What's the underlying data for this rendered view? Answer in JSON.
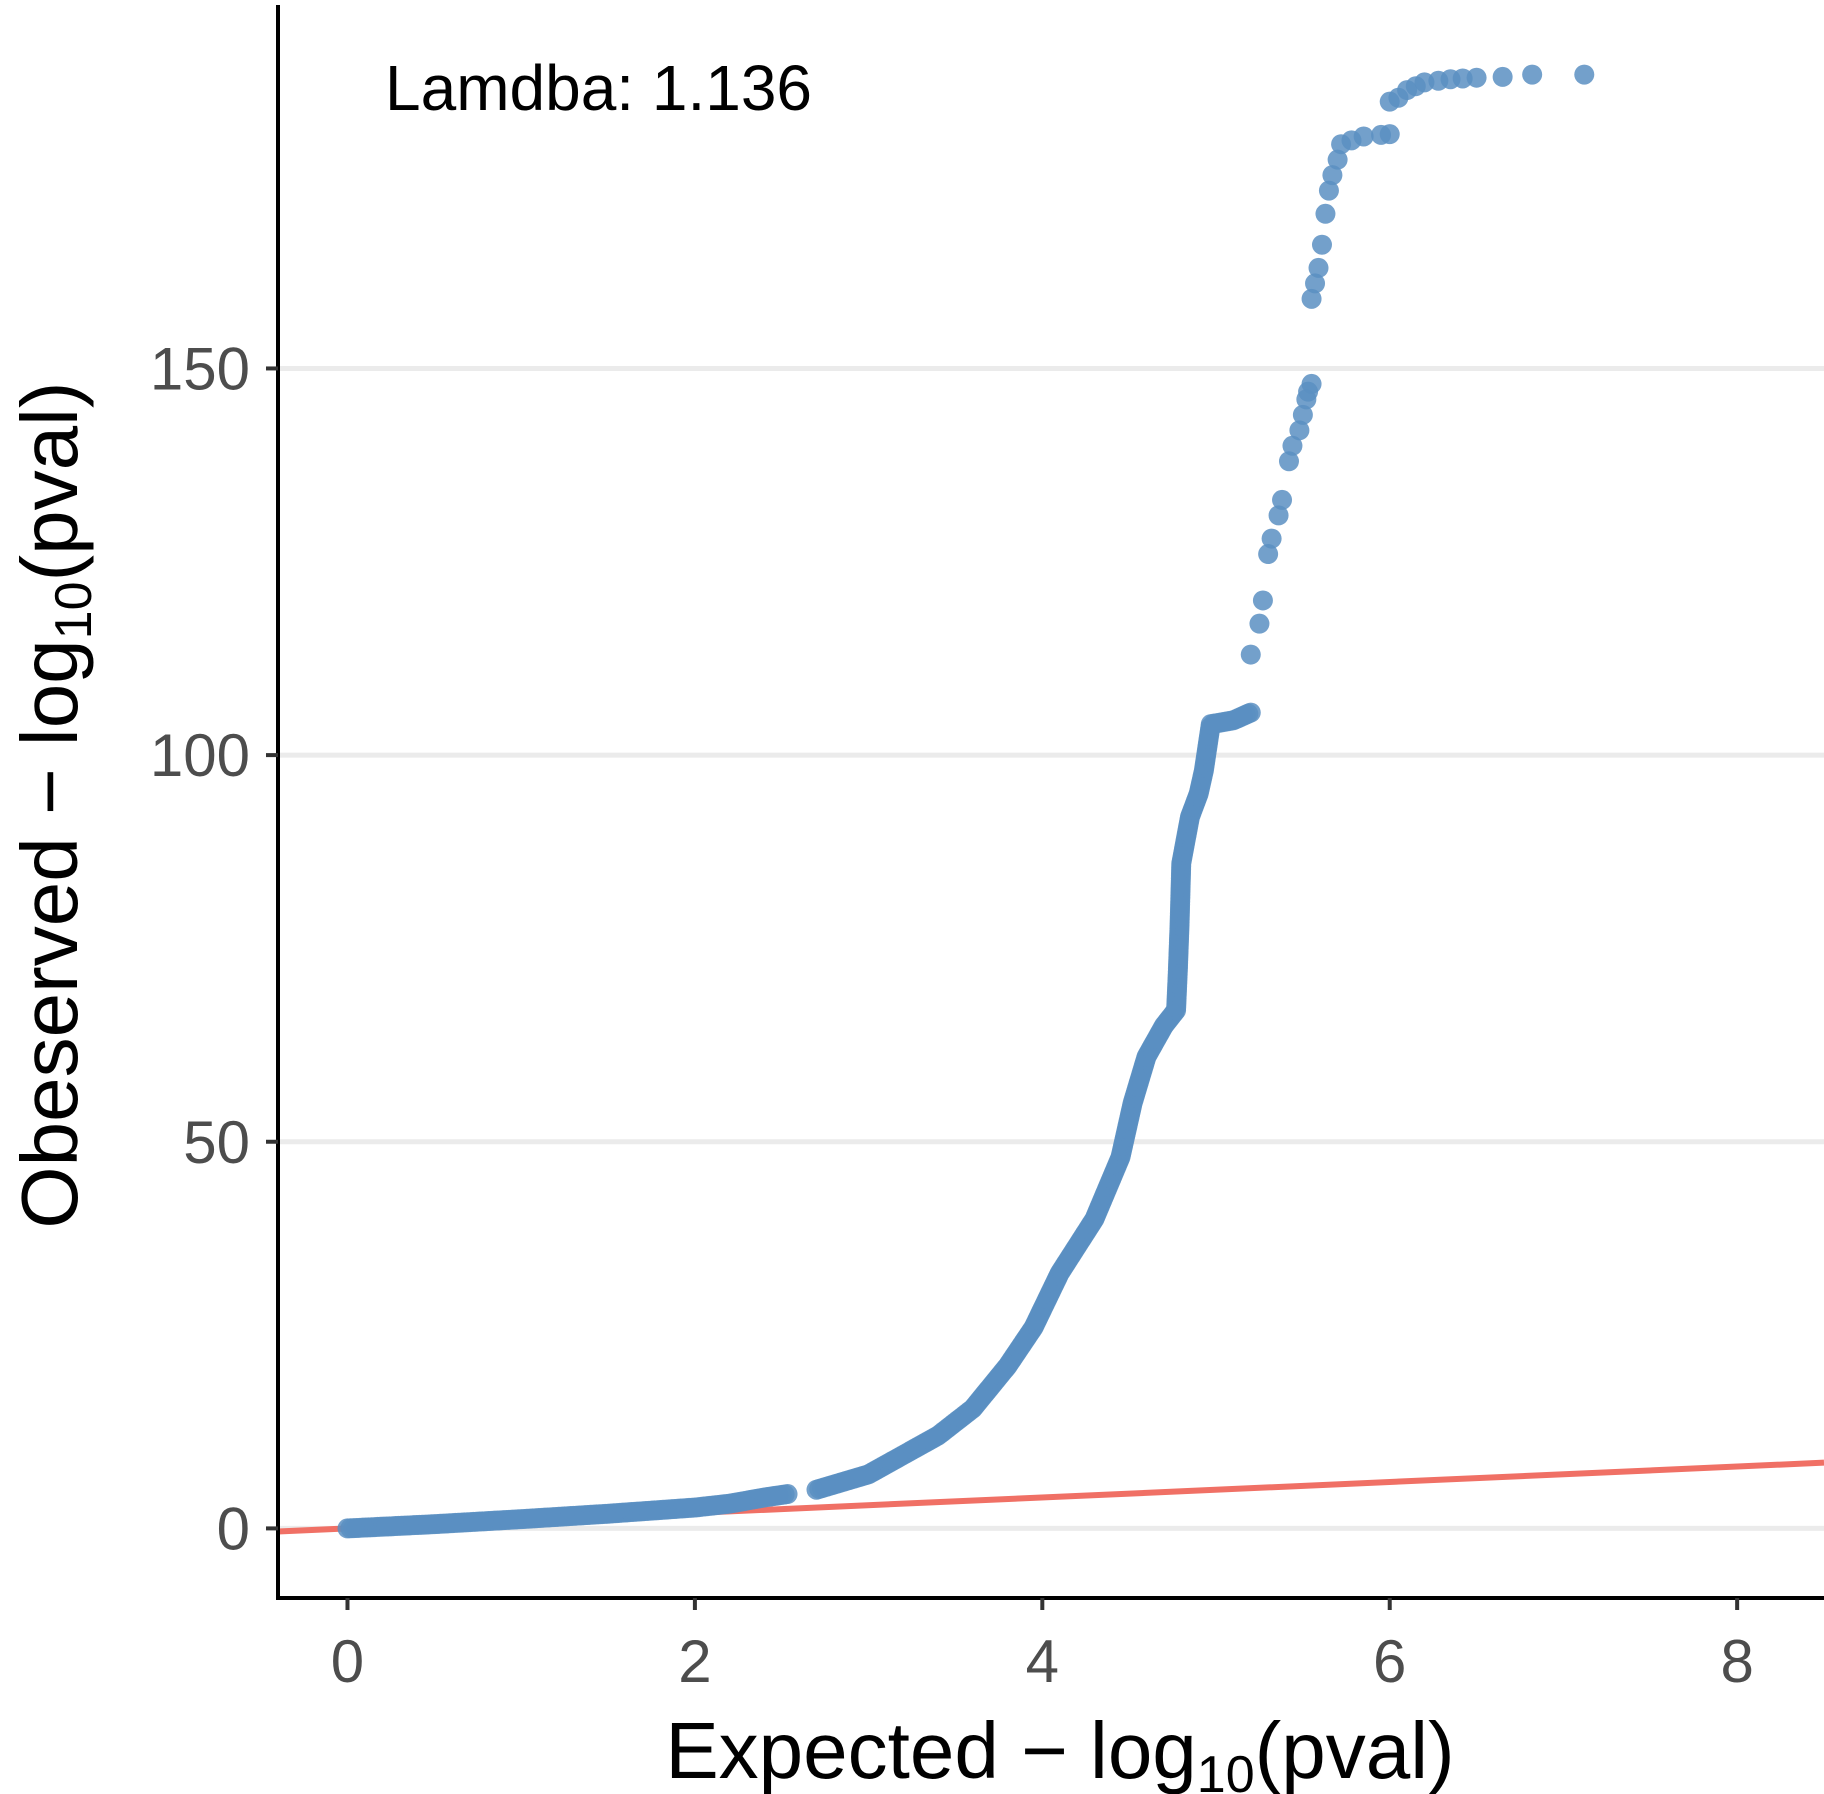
{
  "chart_data": {
    "type": "scatter",
    "annotation": "Lamdba: 1.136",
    "xlabel": {
      "main": "Expected − log",
      "sub": "10",
      "tail": "(pval)"
    },
    "ylabel": {
      "main": "Obeserved − log",
      "sub": "10",
      "tail": "(pval)"
    },
    "xlim": [
      -0.4,
      8.5
    ],
    "ylim": [
      -9,
      197
    ],
    "x_ticks": [
      0,
      2,
      4,
      6,
      8
    ],
    "x_tick_labels": [
      "0",
      "2",
      "4",
      "6",
      "8"
    ],
    "y_ticks": [
      0,
      50,
      100,
      150
    ],
    "y_tick_labels": [
      "0",
      "50",
      "100",
      "150"
    ],
    "grid": "horizontal major",
    "point_color": "#5A8FC2",
    "line_color": "#F07065",
    "reference_line": {
      "slope": 1,
      "intercept": 0
    },
    "curve": [
      [
        0.0,
        0.0
      ],
      [
        0.5,
        0.55
      ],
      [
        1.0,
        1.2
      ],
      [
        1.5,
        1.9
      ],
      [
        2.0,
        2.7
      ],
      [
        2.2,
        3.2
      ],
      [
        2.3,
        3.6
      ],
      [
        2.4,
        4.0
      ],
      [
        2.55,
        4.5
      ],
      [
        2.7,
        5.0
      ],
      [
        3.0,
        7.0
      ],
      [
        3.2,
        9.5
      ],
      [
        3.4,
        12.0
      ],
      [
        3.6,
        15.5
      ],
      [
        3.8,
        21.0
      ],
      [
        3.95,
        26.0
      ],
      [
        4.1,
        33.0
      ],
      [
        4.3,
        40.0
      ],
      [
        4.45,
        48.0
      ],
      [
        4.52,
        55.0
      ],
      [
        4.6,
        61.0
      ],
      [
        4.7,
        65.0
      ],
      [
        4.77,
        67.0
      ],
      [
        4.78,
        72.0
      ],
      [
        4.79,
        78.0
      ],
      [
        4.8,
        86.0
      ],
      [
        4.85,
        92.0
      ],
      [
        4.9,
        95.0
      ],
      [
        4.93,
        98.0
      ],
      [
        4.97,
        104.0
      ],
      [
        5.1,
        104.5
      ],
      [
        5.2,
        105.5
      ]
    ],
    "points": [
      [
        5.2,
        113
      ],
      [
        5.25,
        117
      ],
      [
        5.27,
        120
      ],
      [
        5.3,
        126
      ],
      [
        5.32,
        128
      ],
      [
        5.36,
        131
      ],
      [
        5.38,
        133
      ],
      [
        5.42,
        138
      ],
      [
        5.44,
        140
      ],
      [
        5.48,
        142
      ],
      [
        5.5,
        144
      ],
      [
        5.52,
        146
      ],
      [
        5.53,
        147
      ],
      [
        5.55,
        148
      ],
      [
        5.55,
        159
      ],
      [
        5.57,
        161
      ],
      [
        5.59,
        163
      ],
      [
        5.61,
        166
      ],
      [
        5.63,
        170
      ],
      [
        5.65,
        173
      ],
      [
        5.67,
        175
      ],
      [
        5.7,
        177
      ],
      [
        5.72,
        179
      ],
      [
        5.78,
        179.5
      ],
      [
        5.85,
        180
      ],
      [
        5.95,
        180.2
      ],
      [
        6.0,
        180.3
      ],
      [
        6.0,
        184.5
      ],
      [
        6.05,
        185
      ],
      [
        6.1,
        186
      ],
      [
        6.15,
        186.5
      ],
      [
        6.2,
        187
      ],
      [
        6.28,
        187.2
      ],
      [
        6.35,
        187.4
      ],
      [
        6.42,
        187.5
      ],
      [
        6.5,
        187.6
      ],
      [
        6.65,
        187.7
      ],
      [
        6.82,
        188
      ],
      [
        7.12,
        188
      ]
    ]
  }
}
